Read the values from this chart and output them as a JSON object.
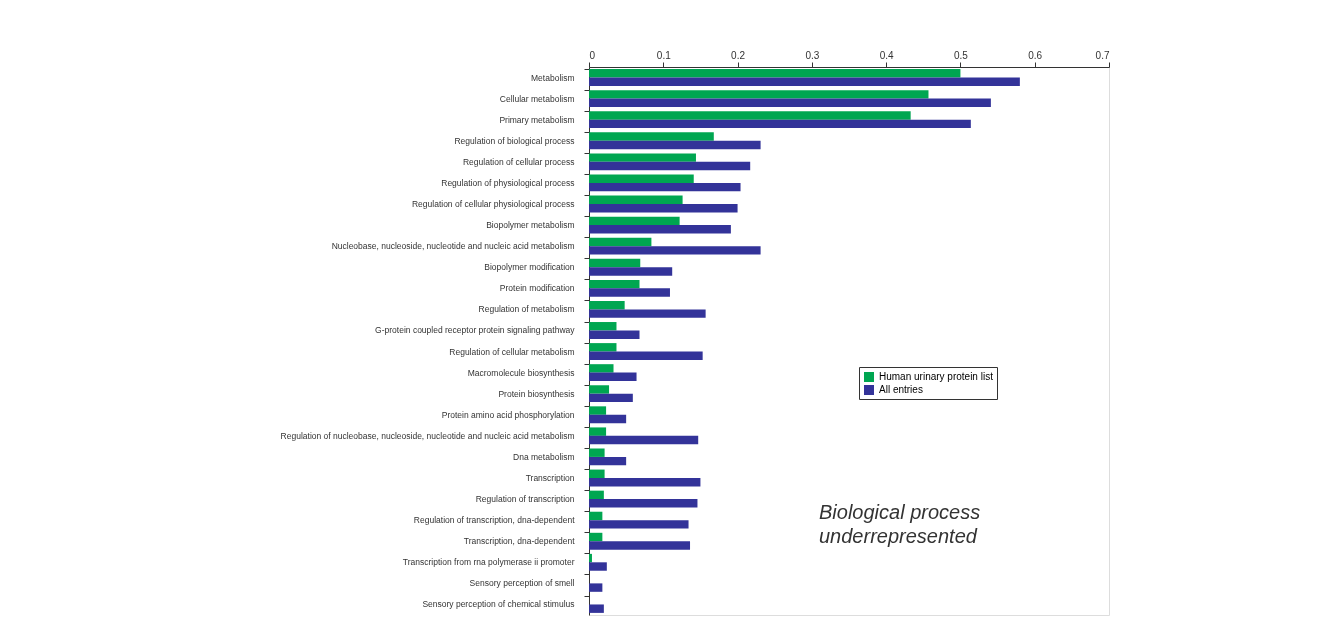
{
  "chart_data": {
    "type": "bar",
    "orientation": "horizontal",
    "categories": [
      "Metabolism",
      "Cellular metabolism",
      "Primary metabolism",
      "Regulation of biological process",
      "Regulation of cellular process",
      "Regulation of physiological process",
      "Regulation of cellular physiological process",
      "Biopolymer metabolism",
      "Nucleobase, nucleoside, nucleotide and nucleic acid metabolism",
      "Biopolymer modification",
      "Protein modification",
      "Regulation of metabolism",
      "G-protein coupled receptor protein signaling pathway",
      "Regulation of cellular metabolism",
      "Macromolecule biosynthesis",
      "Protein biosynthesis",
      "Protein amino acid phosphorylation",
      "Regulation of nucleobase, nucleoside, nucleotide and nucleic acid metabolism",
      "Dna metabolism",
      "Transcription",
      "Regulation of transcription",
      "Regulation of transcription, dna-dependent",
      "Transcription, dna-dependent",
      "Transcription from rna polymerase ii promoter",
      "Sensory perception of smell",
      "Sensory perception of chemical stimulus"
    ],
    "series": [
      {
        "name": "Human urinary protein list",
        "color": "#00a651",
        "values": [
          0.5,
          0.457,
          0.433,
          0.168,
          0.144,
          0.141,
          0.126,
          0.122,
          0.084,
          0.069,
          0.068,
          0.048,
          0.037,
          0.037,
          0.033,
          0.027,
          0.023,
          0.023,
          0.021,
          0.021,
          0.02,
          0.018,
          0.018,
          0.004,
          0,
          0
        ]
      },
      {
        "name": "All entries",
        "color": "#333399",
        "values": [
          0.58,
          0.541,
          0.514,
          0.231,
          0.217,
          0.204,
          0.2,
          0.191,
          0.231,
          0.112,
          0.109,
          0.157,
          0.068,
          0.153,
          0.064,
          0.059,
          0.05,
          0.147,
          0.05,
          0.15,
          0.146,
          0.134,
          0.136,
          0.024,
          0.018,
          0.02
        ]
      }
    ],
    "xlim": [
      0,
      0.7
    ],
    "xticks": [
      0,
      0.1,
      0.2,
      0.3,
      0.4,
      0.5,
      0.6,
      0.7
    ],
    "grid": false,
    "legend": "right",
    "annotations": [
      "Biological process underrepresented"
    ]
  }
}
